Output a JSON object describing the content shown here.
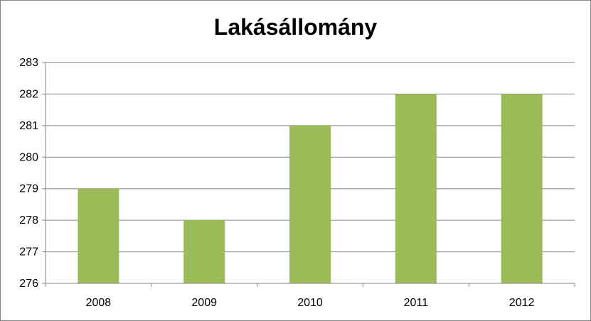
{
  "chart_data": {
    "type": "bar",
    "title": "Lakásállomány",
    "xlabel": "",
    "ylabel": "",
    "categories": [
      "2008",
      "2009",
      "2010",
      "2011",
      "2012"
    ],
    "values": [
      279,
      278,
      281,
      282,
      282
    ],
    "ylim": [
      276,
      283
    ],
    "yticks": [
      276,
      277,
      278,
      279,
      280,
      281,
      282,
      283
    ],
    "grid": true,
    "legend": "none",
    "bar_color": "#9BBB59"
  }
}
